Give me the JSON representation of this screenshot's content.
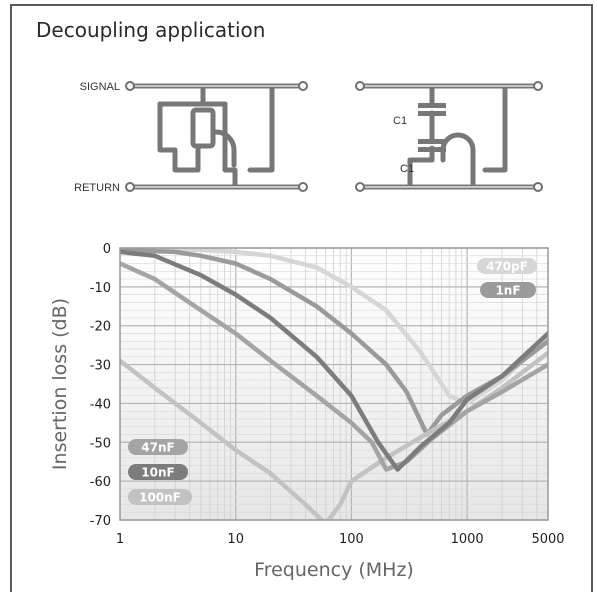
{
  "title": "Decoupling application",
  "circuit": {
    "signal_label": "SIGNAL",
    "return_label": "RETURN",
    "cap_labels": [
      "C1",
      "C1"
    ]
  },
  "chart_data": {
    "type": "line",
    "xlabel": "Frequency (MHz)",
    "ylabel": "Insertion loss (dB)",
    "xscale": "log",
    "xlim": [
      1,
      5000
    ],
    "ylim": [
      -70,
      0
    ],
    "xticks": [
      1,
      10,
      100,
      1000,
      5000
    ],
    "xtick_labels": [
      "1",
      "10",
      "100",
      "1000",
      "5000"
    ],
    "yticks": [
      0,
      -10,
      -20,
      -30,
      -40,
      -50,
      -60,
      -70
    ],
    "ytick_labels": [
      "0",
      "-10",
      "-20",
      "-30",
      "-40",
      "-50",
      "-60",
      "-70"
    ],
    "grid": true,
    "series": [
      {
        "name": "470pF",
        "color": "#d6d6d6",
        "x": [
          1,
          5,
          10,
          20,
          50,
          100,
          200,
          400,
          700,
          1000,
          2000,
          5000
        ],
        "y": [
          0,
          -0.5,
          -1,
          -2,
          -5,
          -10,
          -16,
          -27,
          -38,
          -40,
          -34,
          -23
        ]
      },
      {
        "name": "1nF",
        "color": "#9a9a9a",
        "x": [
          1,
          3,
          5,
          10,
          20,
          50,
          100,
          200,
          300,
          450,
          600,
          1000,
          2000,
          5000
        ],
        "y": [
          -0.5,
          -1,
          -2,
          -4,
          -8,
          -15,
          -22,
          -30,
          -37,
          -48,
          -43,
          -38,
          -33,
          -24
        ]
      },
      {
        "name": "47nF",
        "color": "#a4a4a4",
        "x": [
          1,
          2,
          5,
          10,
          20,
          50,
          100,
          150,
          200,
          300,
          500,
          1000,
          2000,
          5000
        ],
        "y": [
          -4,
          -8,
          -16,
          -22,
          -29,
          -38,
          -45,
          -50,
          -57,
          -55,
          -49,
          -42,
          -37,
          -30
        ]
      },
      {
        "name": "10nF",
        "color": "#7c7c7c",
        "x": [
          1,
          2,
          5,
          10,
          20,
          50,
          100,
          170,
          250,
          400,
          700,
          1000,
          2000,
          5000
        ],
        "y": [
          -1,
          -2,
          -7,
          -12,
          -18,
          -28,
          -38,
          -50,
          -57,
          -51,
          -45,
          -39,
          -33,
          -22
        ]
      },
      {
        "name": "100nF",
        "color": "#c2c2c2",
        "x": [
          1,
          2,
          5,
          10,
          20,
          40,
          60,
          80,
          100,
          200,
          500,
          1000,
          2000,
          5000
        ],
        "y": [
          -29,
          -36,
          -45,
          -52,
          -58,
          -66,
          -71,
          -66,
          -60,
          -54,
          -47,
          -42,
          -36,
          -27
        ]
      }
    ]
  }
}
